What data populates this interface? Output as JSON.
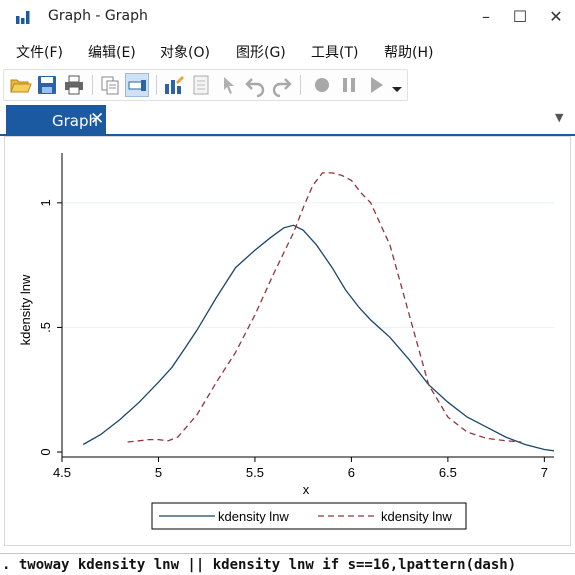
{
  "window": {
    "title": "Graph - Graph",
    "controls": {
      "minimize": "–",
      "maximize": "☐",
      "close": "✕"
    }
  },
  "menubar": {
    "items": [
      {
        "label": "文件(F)"
      },
      {
        "label": "编辑(E)"
      },
      {
        "label": "对象(O)"
      },
      {
        "label": "图形(G)"
      },
      {
        "label": "工具(T)"
      },
      {
        "label": "帮助(H)"
      }
    ]
  },
  "toolbar": {
    "buttons": [
      {
        "name": "open-icon"
      },
      {
        "name": "save-icon"
      },
      {
        "name": "print-icon"
      },
      {
        "name": "copy-icon"
      },
      {
        "name": "editor-icon"
      },
      {
        "name": "graph-editor-icon"
      },
      {
        "name": "properties-icon"
      },
      {
        "name": "pointer-icon"
      },
      {
        "name": "undo-icon"
      },
      {
        "name": "redo-icon"
      },
      {
        "name": "record-icon"
      },
      {
        "name": "pause-icon"
      },
      {
        "name": "play-icon"
      },
      {
        "name": "dropdown-icon"
      }
    ]
  },
  "tabs": [
    {
      "label": "Graph",
      "close": "✕",
      "active": true
    }
  ],
  "tab_dropdown": "▼",
  "chart_data": {
    "type": "line",
    "xlabel": "x",
    "ylabel": "kdensity lnw",
    "xlim": [
      4.5,
      7.05
    ],
    "ylim": [
      -0.02,
      1.2
    ],
    "xticks": [
      4.5,
      5,
      5.5,
      6,
      6.5,
      7
    ],
    "xtick_labels": [
      "4.5",
      "5",
      "5.5",
      "6",
      "6.5",
      "7"
    ],
    "yticks": [
      0,
      0.5,
      1
    ],
    "ytick_labels": [
      "0",
      ".5",
      "1"
    ],
    "grid": true,
    "legend_position": "bottom",
    "series": [
      {
        "name": "kdensity lnw",
        "style": "solid",
        "color": "#1a476f",
        "x": [
          4.61,
          4.7,
          4.8,
          4.9,
          5.0,
          5.07,
          5.14,
          5.2,
          5.3,
          5.4,
          5.5,
          5.58,
          5.65,
          5.7,
          5.75,
          5.82,
          5.9,
          5.97,
          6.04,
          6.1,
          6.2,
          6.3,
          6.4,
          6.5,
          6.6,
          6.7,
          6.8,
          6.9,
          7.0,
          7.05
        ],
        "y": [
          0.03,
          0.07,
          0.13,
          0.2,
          0.28,
          0.34,
          0.42,
          0.49,
          0.62,
          0.74,
          0.81,
          0.86,
          0.9,
          0.91,
          0.89,
          0.83,
          0.74,
          0.65,
          0.58,
          0.53,
          0.46,
          0.37,
          0.27,
          0.2,
          0.14,
          0.1,
          0.06,
          0.03,
          0.01,
          0.005
        ]
      },
      {
        "name": "kdensity lnw",
        "style": "dash",
        "color": "#90353b",
        "x": [
          4.84,
          4.9,
          4.95,
          5.0,
          5.05,
          5.1,
          5.2,
          5.3,
          5.4,
          5.5,
          5.6,
          5.7,
          5.75,
          5.8,
          5.85,
          5.9,
          5.95,
          6.0,
          6.05,
          6.1,
          6.2,
          6.3,
          6.4,
          6.5,
          6.6,
          6.7,
          6.8,
          6.88
        ],
        "y": [
          0.04,
          0.045,
          0.05,
          0.05,
          0.045,
          0.06,
          0.15,
          0.28,
          0.4,
          0.55,
          0.72,
          0.88,
          0.98,
          1.07,
          1.12,
          1.12,
          1.11,
          1.09,
          1.04,
          1.0,
          0.83,
          0.55,
          0.27,
          0.14,
          0.08,
          0.055,
          0.045,
          0.04
        ]
      }
    ]
  },
  "command": ". twoway kdensity lnw || kdensity lnw if s==16,lpattern(dash)"
}
